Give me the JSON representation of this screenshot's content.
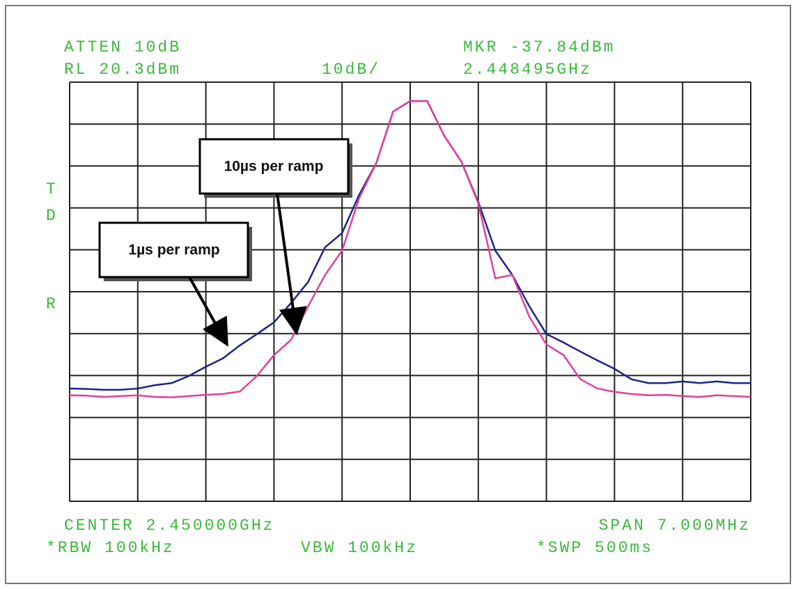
{
  "chart_data": {
    "type": "line",
    "atten": "ATTEN 10dB",
    "ref_level": "RL 20.3dBm",
    "scale": "10dB/",
    "marker_level": "MKR -37.84dBm",
    "marker_freq": "2.448495GHz",
    "side_labels": [
      "T",
      "D",
      "R"
    ],
    "center": "CENTER 2.450000GHz",
    "span": "SPAN 7.000MHz",
    "rbw": "*RBW 100kHz",
    "vbw": "VBW 100kHz",
    "sweep": "*SWP 500ms",
    "xlim": [
      2.4465,
      2.4535
    ],
    "ylim": [
      -79.7,
      20.3
    ],
    "grid": true,
    "x": [
      2.4465,
      2.446675,
      2.44685,
      2.447025,
      2.4472,
      2.447375,
      2.44755,
      2.447725,
      2.4479,
      2.448075,
      2.44825,
      2.448425,
      2.4486,
      2.448775,
      2.44895,
      2.449125,
      2.4493,
      2.449475,
      2.44965,
      2.449825,
      2.45,
      2.450175,
      2.45035,
      2.450525,
      2.4507,
      2.450875,
      2.45105,
      2.451225,
      2.4514,
      2.451575,
      2.45175,
      2.451925,
      2.4521,
      2.452275,
      2.45245,
      2.452625,
      2.4528,
      2.452975,
      2.45315,
      2.453325,
      2.4535
    ],
    "series": [
      {
        "name": "1µs per ramp",
        "color": "#1d2388",
        "values": [
          -52.8,
          -52.9,
          -53.1,
          -53.1,
          -52.8,
          -52.0,
          -51.5,
          -49.8,
          -47.6,
          -45.6,
          -42.5,
          -39.8,
          -37.0,
          -32.4,
          -27.4,
          -19.1,
          -15.7,
          -6.6,
          0.9,
          13.3,
          15.8,
          15.8,
          7.5,
          1.4,
          -8.3,
          -19.9,
          -25.7,
          -33.2,
          -39.8,
          -41.8,
          -44.0,
          -46.1,
          -48.1,
          -50.6,
          -51.5,
          -51.5,
          -51.1,
          -51.5,
          -51.1,
          -51.5,
          -51.5
        ]
      },
      {
        "name": "10µs per ramp",
        "color": "#e0409a",
        "values": [
          -54.4,
          -54.5,
          -54.8,
          -54.6,
          -54.4,
          -54.8,
          -54.9,
          -54.6,
          -54.3,
          -54.1,
          -53.5,
          -49.8,
          -44.8,
          -41.2,
          -33.2,
          -25.7,
          -19.9,
          -7.4,
          0.9,
          13.3,
          15.8,
          15.8,
          7.5,
          1.4,
          -8.6,
          -26.5,
          -25.7,
          -35.7,
          -42.3,
          -44.8,
          -50.6,
          -52.8,
          -53.6,
          -54.1,
          -54.4,
          -54.3,
          -54.6,
          -54.8,
          -54.4,
          -54.6,
          -54.8
        ]
      }
    ]
  }
}
